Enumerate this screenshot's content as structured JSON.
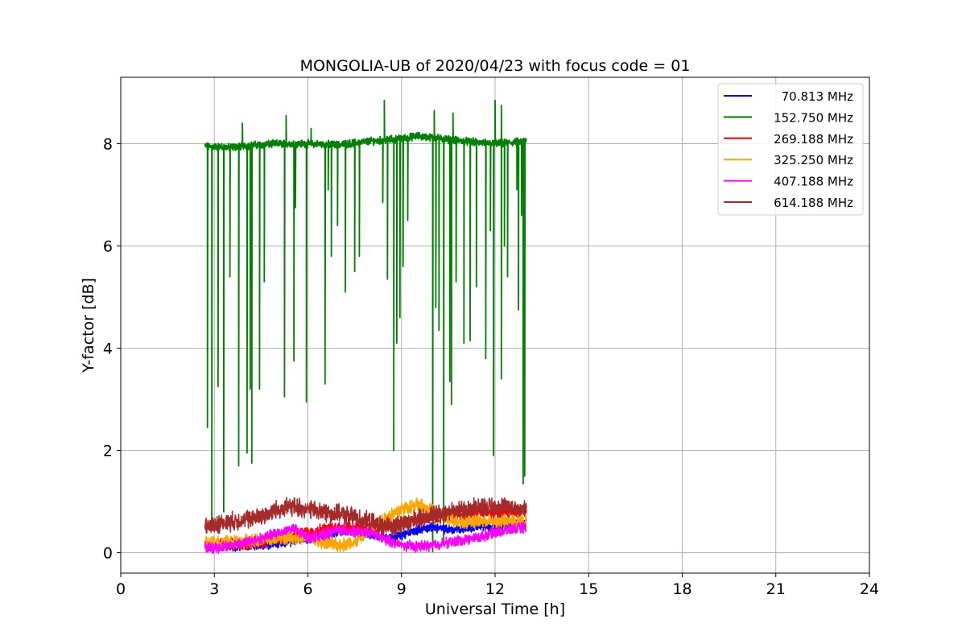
{
  "chart_data": {
    "type": "line",
    "title": "MONGOLIA-UB of 2020/04/23 with focus code = 01",
    "xlabel": "Universal Time [h]",
    "ylabel": "Y-factor [dB]",
    "xlim": [
      0,
      24
    ],
    "ylim": [
      -0.4,
      9.3
    ],
    "xticks": [
      0,
      3,
      6,
      9,
      12,
      15,
      18,
      21,
      24
    ],
    "yticks": [
      0,
      2,
      4,
      6,
      8
    ],
    "xtick_labels": [
      "0",
      "3",
      "6",
      "9",
      "12",
      "15",
      "18",
      "21",
      "24"
    ],
    "ytick_labels": [
      "0",
      "2",
      "4",
      "6",
      "8"
    ],
    "grid": true,
    "legend_position": "top-right",
    "series": [
      {
        "name": "70.813 MHz",
        "color": "#0000ff",
        "noise": 0.06,
        "x": [
          2.7,
          3.5,
          4.2,
          4.8,
          5.5,
          6.2,
          7.0,
          7.5,
          8.0,
          8.5,
          9.0,
          9.5,
          10.0,
          10.5,
          11.0,
          11.5,
          12.0,
          12.5,
          13.0
        ],
        "y": [
          0.12,
          0.12,
          0.13,
          0.16,
          0.22,
          0.3,
          0.42,
          0.45,
          0.35,
          0.3,
          0.34,
          0.45,
          0.5,
          0.45,
          0.47,
          0.52,
          0.5,
          0.55,
          0.6
        ]
      },
      {
        "name": "152.750 MHz",
        "color": "#008000",
        "noise": 0.05,
        "x": [
          2.7,
          3.5,
          4.2,
          5.0,
          6.0,
          7.0,
          8.0,
          9.0,
          9.5,
          10.0,
          11.0,
          12.0,
          12.5,
          13.0
        ],
        "y": [
          7.95,
          7.93,
          7.97,
          8.0,
          8.0,
          7.98,
          8.05,
          8.1,
          8.15,
          8.12,
          8.05,
          8.0,
          8.02,
          8.05
        ],
        "spikes": [
          {
            "x": 2.78,
            "y": 2.45
          },
          {
            "x": 2.92,
            "y": 0.6
          },
          {
            "x": 3.12,
            "y": 3.25
          },
          {
            "x": 3.3,
            "y": 0.8
          },
          {
            "x": 3.5,
            "y": 5.4
          },
          {
            "x": 3.78,
            "y": 1.7
          },
          {
            "x": 4.05,
            "y": 1.95
          },
          {
            "x": 4.2,
            "y": 1.75
          },
          {
            "x": 4.15,
            "y": 3.2
          },
          {
            "x": 4.45,
            "y": 3.2
          },
          {
            "x": 4.6,
            "y": 5.3
          },
          {
            "x": 5.25,
            "y": 3.05
          },
          {
            "x": 5.55,
            "y": 3.75
          },
          {
            "x": 5.6,
            "y": 6.75
          },
          {
            "x": 5.95,
            "y": 2.95
          },
          {
            "x": 6.55,
            "y": 3.3
          },
          {
            "x": 6.65,
            "y": 7.1
          },
          {
            "x": 6.75,
            "y": 5.8
          },
          {
            "x": 6.95,
            "y": 6.4
          },
          {
            "x": 7.2,
            "y": 5.1
          },
          {
            "x": 7.5,
            "y": 5.5
          },
          {
            "x": 7.65,
            "y": 5.8
          },
          {
            "x": 8.4,
            "y": 6.85
          },
          {
            "x": 8.55,
            "y": 5.35
          },
          {
            "x": 8.75,
            "y": 2.0
          },
          {
            "x": 8.85,
            "y": 4.1
          },
          {
            "x": 8.95,
            "y": 4.6
          },
          {
            "x": 9.05,
            "y": 5.6
          },
          {
            "x": 9.2,
            "y": 6.5
          },
          {
            "x": 10.0,
            "y": 0.02
          },
          {
            "x": 10.1,
            "y": 4.8
          },
          {
            "x": 10.2,
            "y": 4.35
          },
          {
            "x": 10.35,
            "y": 0.2
          },
          {
            "x": 10.55,
            "y": 3.35
          },
          {
            "x": 10.6,
            "y": 2.9
          },
          {
            "x": 10.75,
            "y": 5.3
          },
          {
            "x": 11.0,
            "y": 4.1
          },
          {
            "x": 11.2,
            "y": 4.15
          },
          {
            "x": 11.4,
            "y": 5.2
          },
          {
            "x": 11.7,
            "y": 3.8
          },
          {
            "x": 11.85,
            "y": 6.3
          },
          {
            "x": 11.95,
            "y": 1.9
          },
          {
            "x": 12.3,
            "y": 6.0
          },
          {
            "x": 12.4,
            "y": 5.4
          },
          {
            "x": 12.7,
            "y": 7.1
          },
          {
            "x": 12.75,
            "y": 4.75
          },
          {
            "x": 12.85,
            "y": 6.6
          },
          {
            "x": 12.9,
            "y": 1.35
          },
          {
            "x": 12.95,
            "y": 1.5
          },
          {
            "x": 12.2,
            "y": 3.4
          }
        ],
        "peaks": [
          {
            "x": 3.9,
            "y": 8.4
          },
          {
            "x": 5.3,
            "y": 8.55
          },
          {
            "x": 6.1,
            "y": 8.3
          },
          {
            "x": 8.45,
            "y": 8.85
          },
          {
            "x": 10.05,
            "y": 8.65
          },
          {
            "x": 10.65,
            "y": 8.6
          },
          {
            "x": 12.0,
            "y": 8.85
          },
          {
            "x": 12.2,
            "y": 8.75
          }
        ]
      },
      {
        "name": "269.188 MHz",
        "color": "#ff0000",
        "noise": 0.08,
        "x": [
          2.7,
          3.5,
          4.0,
          4.5,
          5.0,
          5.5,
          6.0,
          6.5,
          7.0,
          7.5,
          8.0,
          8.5,
          9.0,
          9.5,
          10.0,
          10.5,
          11.0,
          11.5,
          12.0,
          12.5,
          13.0
        ],
        "y": [
          0.15,
          0.16,
          0.18,
          0.2,
          0.26,
          0.32,
          0.4,
          0.46,
          0.5,
          0.5,
          0.48,
          0.52,
          0.6,
          0.65,
          0.7,
          0.75,
          0.78,
          0.8,
          0.78,
          0.8,
          0.82
        ]
      },
      {
        "name": "325.250 MHz",
        "color": "#ffa500",
        "noise": 0.09,
        "x": [
          2.7,
          3.5,
          4.0,
          4.5,
          5.0,
          5.5,
          6.0,
          6.5,
          7.0,
          7.5,
          8.0,
          8.5,
          9.0,
          9.5,
          10.0,
          10.5,
          11.0,
          11.5,
          12.0,
          12.5,
          13.0
        ],
        "y": [
          0.2,
          0.2,
          0.22,
          0.25,
          0.3,
          0.3,
          0.28,
          0.2,
          0.15,
          0.2,
          0.45,
          0.7,
          0.85,
          0.95,
          0.8,
          0.65,
          0.6,
          0.62,
          0.6,
          0.62,
          0.62
        ]
      },
      {
        "name": "407.188 MHz",
        "color": "#ff00ff",
        "noise": 0.07,
        "x": [
          2.7,
          3.2,
          3.5,
          4.0,
          4.5,
          5.0,
          5.5,
          6.0,
          6.5,
          7.0,
          7.5,
          8.0,
          8.5,
          9.0,
          9.5,
          10.0,
          10.5,
          11.0,
          11.5,
          12.0,
          12.5,
          13.0
        ],
        "y": [
          0.1,
          0.1,
          0.15,
          0.2,
          0.28,
          0.38,
          0.48,
          0.3,
          0.35,
          0.45,
          0.4,
          0.4,
          0.25,
          0.15,
          0.12,
          0.15,
          0.2,
          0.25,
          0.3,
          0.4,
          0.45,
          0.5
        ]
      },
      {
        "name": "614.188 MHz",
        "color": "#a52a2a",
        "noise": 0.12,
        "x": [
          2.7,
          3.0,
          3.5,
          4.0,
          4.5,
          5.0,
          5.5,
          6.0,
          6.5,
          7.0,
          7.5,
          8.0,
          8.5,
          9.0,
          9.5,
          10.0,
          10.5,
          11.0,
          11.5,
          12.0,
          12.5,
          13.0
        ],
        "y": [
          0.5,
          0.55,
          0.6,
          0.65,
          0.7,
          0.85,
          0.9,
          0.85,
          0.8,
          0.75,
          0.7,
          0.6,
          0.5,
          0.55,
          0.65,
          0.75,
          0.8,
          0.85,
          0.9,
          0.9,
          0.9,
          0.85
        ]
      }
    ]
  }
}
